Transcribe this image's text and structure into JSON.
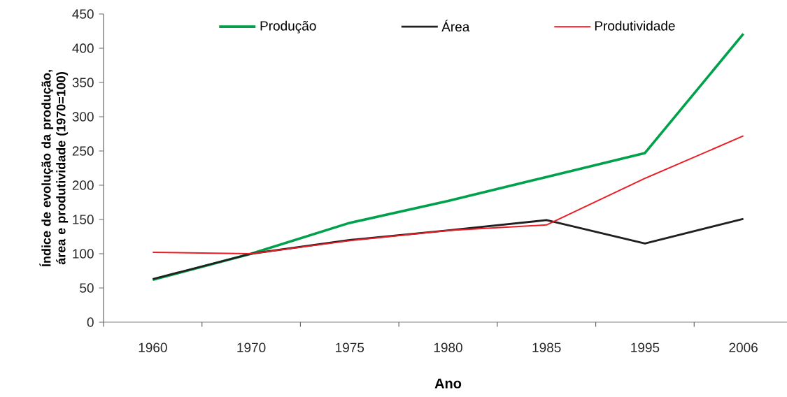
{
  "chart_data": {
    "type": "line",
    "xlabel": "Ano",
    "ylabel": "Índice de evolução da produção, área e produtividade (1970=100)",
    "categories": [
      "1960",
      "1970",
      "1975",
      "1980",
      "1985",
      "1995",
      "2006"
    ],
    "series": [
      {
        "name": "Produção",
        "color": "#00a14b",
        "values": [
          62,
          100,
          145,
          177,
          212,
          247,
          421
        ]
      },
      {
        "name": "Área",
        "color": "#231f20",
        "values": [
          63,
          100,
          120,
          134,
          149,
          115,
          151
        ]
      },
      {
        "name": "Produtividade",
        "color": "#ed1c24",
        "values": [
          102,
          100,
          119,
          134,
          142,
          210,
          272
        ]
      }
    ],
    "ylim": [
      0,
      450
    ],
    "yticks": [
      0,
      50,
      100,
      150,
      200,
      250,
      300,
      350,
      400,
      450
    ],
    "grid": false,
    "legend": "top",
    "marker": "none",
    "line_style": "solid"
  }
}
